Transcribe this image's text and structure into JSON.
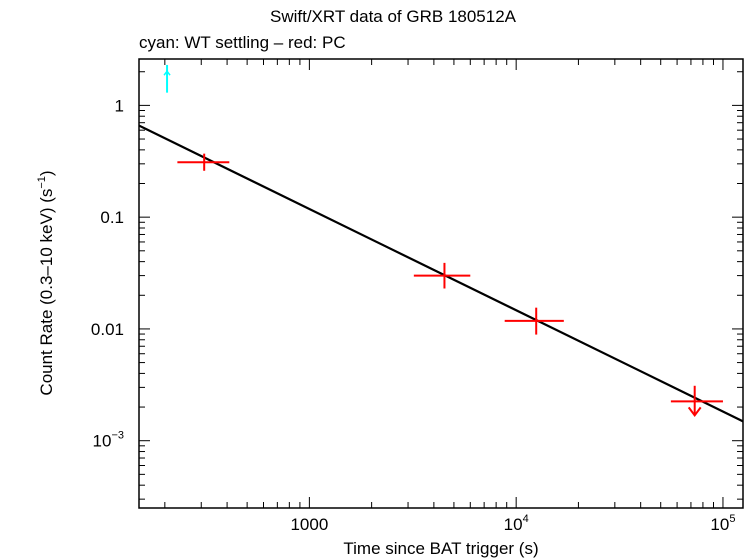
{
  "chart_data": {
    "type": "scatter",
    "title": "Swift/XRT data of GRB 180512A",
    "subtitle": "cyan: WT settling – red: PC",
    "xlabel": "Time since BAT trigger (s)",
    "ylabel": "Count Rate (0.3–10 keV) (s",
    "ylabel_sup": "−1",
    "ylabel_end": ")",
    "xscale": "log",
    "yscale": "log",
    "xlim": [
      150,
      125000
    ],
    "ylim": [
      0.00025,
      2.6
    ],
    "x_ticks": [
      {
        "value": 1000,
        "base": "1000",
        "sup": ""
      },
      {
        "value": 10000,
        "base": "10",
        "sup": "4"
      },
      {
        "value": 100000,
        "base": "10",
        "sup": "5"
      }
    ],
    "y_ticks": [
      {
        "value": 1,
        "base": "1",
        "sup": ""
      },
      {
        "value": 0.1,
        "base": "0.1",
        "sup": ""
      },
      {
        "value": 0.01,
        "base": "0.01",
        "sup": ""
      },
      {
        "value": 0.001,
        "base": "10",
        "sup": "−3"
      }
    ],
    "series": [
      {
        "name": "WT settling",
        "color": "#00ffff",
        "points": [
          {
            "x": 205,
            "y": 1.75,
            "xlo": 205,
            "xhi": 205,
            "ylo": 1.3,
            "yhi": 2.3,
            "upper_limit": false
          }
        ]
      },
      {
        "name": "PC",
        "color": "#ff0000",
        "points": [
          {
            "x": 310,
            "y": 0.31,
            "xlo": 230,
            "xhi": 410,
            "ylo": 0.26,
            "yhi": 0.37,
            "upper_limit": false
          },
          {
            "x": 4500,
            "y": 0.03,
            "xlo": 3200,
            "xhi": 6000,
            "ylo": 0.023,
            "yhi": 0.039,
            "upper_limit": false
          },
          {
            "x": 12500,
            "y": 0.0118,
            "xlo": 8800,
            "xhi": 17000,
            "ylo": 0.0089,
            "yhi": 0.0155,
            "upper_limit": false
          },
          {
            "x": 73000,
            "y": 0.00225,
            "xlo": 56000,
            "xhi": 100000,
            "ylo": 0.00225,
            "yhi": 0.0031,
            "upper_limit": true
          }
        ]
      }
    ],
    "model": {
      "name": "power-law fit",
      "color": "#000000",
      "x": [
        150,
        125000
      ],
      "y": [
        0.66,
        0.00149
      ]
    }
  }
}
